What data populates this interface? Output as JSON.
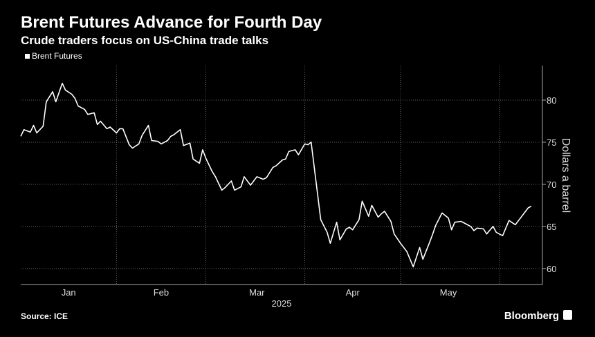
{
  "chart_data": {
    "type": "line",
    "title": "Brent Futures Advance for Fourth Day",
    "subtitle": "Crude traders focus on US-China trade talks",
    "y_label": "Dollars a barrel",
    "x_label": "2025",
    "source": "Source: ICE",
    "brand": "Bloomberg",
    "xlim": [
      1,
      161
    ],
    "xticks": [
      {
        "value": 16,
        "label": "Jan"
      },
      {
        "value": 45,
        "label": "Feb"
      },
      {
        "value": 75,
        "label": "Mar"
      },
      {
        "value": 105,
        "label": "Apr"
      },
      {
        "value": 135,
        "label": "May"
      }
    ],
    "xgrid": [
      31,
      59,
      90,
      120,
      151
    ],
    "ylim": [
      58.1,
      84.1
    ],
    "yticks": [
      60,
      65,
      70,
      75,
      80
    ],
    "grid": true,
    "legend": "top-left",
    "x": [
      1,
      2,
      4,
      5,
      6,
      8,
      9,
      11,
      12,
      14,
      15,
      17,
      18,
      19,
      21,
      22,
      24,
      25,
      26,
      28,
      29,
      31,
      32,
      33,
      35,
      36,
      38,
      39,
      41,
      42,
      44,
      45,
      47,
      48,
      49,
      51,
      52,
      54,
      55,
      57,
      58,
      59,
      61,
      62,
      64,
      65,
      67,
      68,
      70,
      71,
      73,
      74,
      75,
      77,
      78,
      80,
      81,
      83,
      84,
      85,
      87,
      88,
      90,
      91,
      92,
      95,
      97,
      98,
      100,
      101,
      103,
      104,
      105,
      107,
      108,
      110,
      111,
      113,
      114,
      115,
      117,
      118,
      120,
      122,
      123,
      124,
      126,
      127,
      129,
      130,
      131,
      133,
      135,
      136,
      137,
      139,
      140,
      142,
      143,
      144,
      146,
      147,
      149,
      150,
      152,
      153,
      154,
      156,
      157,
      159,
      160,
      161
    ],
    "series": [
      {
        "name": "Brent Futures",
        "color": "#ffffff",
        "values": [
          75.7,
          76.5,
          76.2,
          77.0,
          76.1,
          76.9,
          79.8,
          81.0,
          79.8,
          82.0,
          81.2,
          80.7,
          80.2,
          79.3,
          78.9,
          78.3,
          78.5,
          77.1,
          77.5,
          76.6,
          76.8,
          76.1,
          76.6,
          76.6,
          74.7,
          74.3,
          74.8,
          75.8,
          77.0,
          75.2,
          75.1,
          74.8,
          75.2,
          75.7,
          75.9,
          76.5,
          74.6,
          74.9,
          73.0,
          72.5,
          74.1,
          73.1,
          71.5,
          70.9,
          69.3,
          69.6,
          70.4,
          69.3,
          69.7,
          70.9,
          69.9,
          70.4,
          70.9,
          70.6,
          70.8,
          72.0,
          72.2,
          72.9,
          73.0,
          73.9,
          74.1,
          73.5,
          74.8,
          74.7,
          75.0,
          65.8,
          64.3,
          63.0,
          65.5,
          63.4,
          64.7,
          64.9,
          64.6,
          65.8,
          68.0,
          66.2,
          67.5,
          66.1,
          66.5,
          66.8,
          65.6,
          64.1,
          63.0,
          62.0,
          61.1,
          60.2,
          62.5,
          61.1,
          63.0,
          64.0,
          65.1,
          66.6,
          66.0,
          64.6,
          65.5,
          65.6,
          65.4,
          65.0,
          64.5,
          64.8,
          64.7,
          64.1,
          65.0,
          64.3,
          63.9,
          64.8,
          65.7,
          65.2,
          65.7,
          66.7,
          67.2,
          67.4
        ]
      }
    ]
  }
}
